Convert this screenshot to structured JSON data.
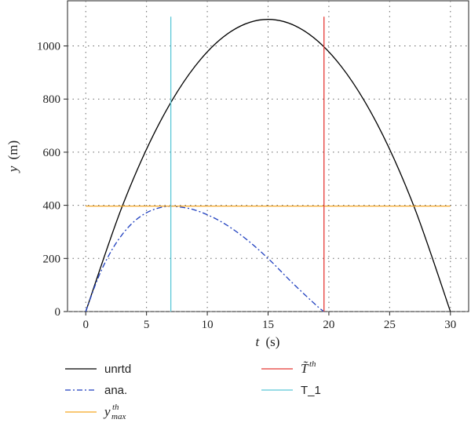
{
  "chart_data": {
    "type": "line",
    "xlabel": "t (s)",
    "ylabel": "y (m)",
    "xlim": [
      -1.5,
      31.5
    ],
    "ylim": [
      0,
      1170
    ],
    "x_ticks": [
      0,
      5,
      10,
      15,
      20,
      25,
      30
    ],
    "y_ticks": [
      0,
      200,
      400,
      600,
      800,
      1000
    ],
    "grid": true,
    "legend_position": "below",
    "series": [
      {
        "key": "unrtd",
        "name": "unrtd",
        "color": "#000000",
        "style": "solid",
        "x": [
          0,
          3,
          6,
          9,
          12,
          15,
          18,
          21,
          24,
          27,
          30
        ],
        "y": [
          0,
          396,
          704,
          924,
          1056,
          1100,
          1056,
          924,
          704,
          396,
          0
        ]
      },
      {
        "key": "ana",
        "name": "ana.",
        "color": "#1f3fbf",
        "style": "dashdot",
        "x": [
          0,
          1,
          2,
          3,
          4,
          5,
          6,
          7,
          7.5,
          9,
          11,
          13,
          15,
          17,
          19,
          19.6
        ],
        "y": [
          0,
          125,
          220,
          290,
          340,
          372,
          390,
          397,
          395,
          382,
          342,
          280,
          200,
          108,
          22,
          0
        ]
      },
      {
        "key": "ymax",
        "name": "y_max^th",
        "color": "#f5a623",
        "style": "solid",
        "x": [
          0,
          30
        ],
        "y": [
          397,
          397
        ]
      },
      {
        "key": "tth",
        "name": "T~^th",
        "color": "#e53935",
        "style": "solid",
        "x": [
          19.6,
          19.6
        ],
        "y": [
          0,
          1110
        ]
      },
      {
        "key": "t1",
        "name": "T_1",
        "color": "#5bc8d8",
        "style": "solid",
        "x": [
          7,
          7
        ],
        "y": [
          0,
          1110
        ]
      }
    ]
  },
  "legend": {
    "unrtd": "unrtd",
    "ana": "ana.",
    "ymax_base": "y",
    "ymax_sup": "th",
    "ymax_sub": "max",
    "tth_base": "T̃",
    "tth_sup": "th",
    "t1": "T_1"
  },
  "axes": {
    "xlabel_var": "t",
    "xlabel_unit": "(s)",
    "ylabel_var": "y",
    "ylabel_unit": "(m)"
  }
}
